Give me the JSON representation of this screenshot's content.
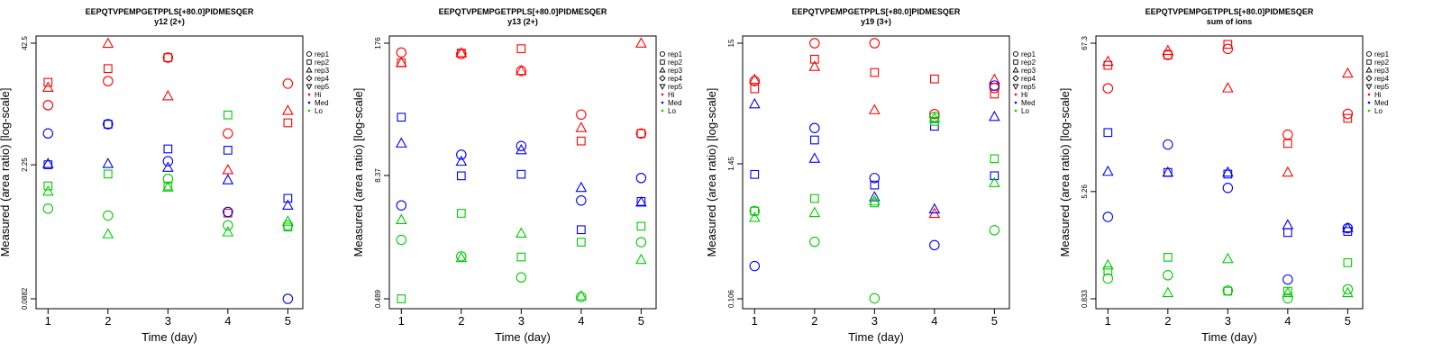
{
  "legend_entries": [
    {
      "label": "rep1",
      "shape": "circle"
    },
    {
      "label": "rep2",
      "shape": "square"
    },
    {
      "label": "rep3",
      "shape": "triangle-up"
    },
    {
      "label": "rep4",
      "shape": "diamond"
    },
    {
      "label": "rep5",
      "shape": "triangle-down"
    },
    {
      "label": "Hi",
      "shape": "dot",
      "color": "#ff0000"
    },
    {
      "label": "Med",
      "shape": "dot",
      "color": "#0000ff"
    },
    {
      "label": "Lo",
      "shape": "dot",
      "color": "#00cc00"
    }
  ],
  "colors": {
    "Hi": "#ff0000",
    "Med": "#0000ff",
    "Lo": "#00cc00"
  },
  "chart_data": [
    {
      "type": "scatter",
      "title": "EEPQTVPEMPGETPPLS[+80.0]PIDMESQER",
      "subtitle": "y12 (2+)",
      "xlabel": "Time (day)",
      "ylabel": "Measured (area ratio) [log-scale]",
      "log_y": true,
      "xlim": [
        0.8,
        5.25
      ],
      "ylim": [
        0.0882,
        42.5
      ],
      "x_ticks": [
        1,
        2,
        3,
        4,
        5
      ],
      "y_ticks": [
        0.0882,
        2.25,
        42.5
      ],
      "y_tick_labels": [
        "0.0882",
        "2.25",
        "42.5"
      ],
      "series": [
        {
          "condition": "Hi",
          "replicate": "rep1",
          "points": [
            [
              1,
              9.5
            ],
            [
              2,
              17
            ],
            [
              3,
              30
            ],
            [
              4,
              4.8
            ],
            [
              5,
              16
            ]
          ]
        },
        {
          "condition": "Hi",
          "replicate": "rep2",
          "points": [
            [
              1,
              16.5
            ],
            [
              2,
              23
            ],
            [
              3,
              30
            ],
            [
              4,
              0.7
            ],
            [
              5,
              6.2
            ]
          ]
        },
        {
          "condition": "Hi",
          "replicate": "rep3",
          "points": [
            [
              1,
              14.5
            ],
            [
              2,
              42
            ],
            [
              3,
              11.8
            ],
            [
              4,
              1.98
            ],
            [
              5,
              8.3
            ]
          ]
        },
        {
          "condition": "Med",
          "replicate": "rep1",
          "points": [
            [
              1,
              4.8
            ],
            [
              2,
              6.0
            ],
            [
              3,
              2.45
            ],
            [
              4,
              0.72
            ],
            [
              5,
              0.0882
            ]
          ]
        },
        {
          "condition": "Med",
          "replicate": "rep2",
          "points": [
            [
              1,
              2.25
            ],
            [
              2,
              6.0
            ],
            [
              3,
              3.3
            ],
            [
              4,
              3.2
            ],
            [
              5,
              1.0
            ]
          ]
        },
        {
          "condition": "Med",
          "replicate": "rep3",
          "points": [
            [
              1,
              2.3
            ],
            [
              2,
              2.3
            ],
            [
              3,
              2.1
            ],
            [
              4,
              1.55
            ],
            [
              5,
              0.84
            ]
          ]
        },
        {
          "condition": "Lo",
          "replicate": "rep1",
          "points": [
            [
              1,
              0.78
            ],
            [
              2,
              0.66
            ],
            [
              3,
              1.6
            ],
            [
              4,
              0.52
            ],
            [
              5,
              0.52
            ]
          ]
        },
        {
          "condition": "Lo",
          "replicate": "rep2",
          "points": [
            [
              1,
              1.35
            ],
            [
              2,
              1.8
            ],
            [
              3,
              1.35
            ],
            [
              4,
              7.5
            ],
            [
              5,
              0.5
            ]
          ]
        },
        {
          "condition": "Lo",
          "replicate": "rep3",
          "points": [
            [
              1,
              1.18
            ],
            [
              2,
              0.42
            ],
            [
              3,
              1.3
            ],
            [
              4,
              0.44
            ],
            [
              5,
              0.57
            ]
          ]
        }
      ]
    },
    {
      "type": "scatter",
      "title": "EEPQTVPEMPGETPPLS[+80.0]PIDMESQER",
      "subtitle": "y13 (2+)",
      "xlabel": "Time (day)",
      "ylabel": "Measured (area ratio) [log-scale]",
      "log_y": true,
      "xlim": [
        0.8,
        5.25
      ],
      "ylim": [
        0.489,
        176
      ],
      "x_ticks": [
        1,
        2,
        3,
        4,
        5
      ],
      "y_ticks": [
        0.489,
        8.37,
        176
      ],
      "y_tick_labels": [
        "0.489",
        "8.37",
        "176"
      ],
      "series": [
        {
          "condition": "Hi",
          "replicate": "rep1",
          "points": [
            [
              1,
              142
            ],
            [
              2,
              137
            ],
            [
              3,
              93
            ],
            [
              4,
              34
            ],
            [
              5,
              22
            ]
          ]
        },
        {
          "condition": "Hi",
          "replicate": "rep2",
          "points": [
            [
              1,
              112
            ],
            [
              2,
              140
            ],
            [
              3,
              155
            ],
            [
              4,
              18.5
            ],
            [
              5,
              22
            ]
          ]
        },
        {
          "condition": "Hi",
          "replicate": "rep3",
          "points": [
            [
              1,
              112
            ],
            [
              2,
              140
            ],
            [
              3,
              93
            ],
            [
              4,
              25
            ],
            [
              5,
              175
            ]
          ]
        },
        {
          "condition": "Med",
          "replicate": "rep1",
          "points": [
            [
              1,
              4.2
            ],
            [
              2,
              13.5
            ],
            [
              3,
              16.5
            ],
            [
              4,
              4.7
            ],
            [
              5,
              7.9
            ]
          ]
        },
        {
          "condition": "Med",
          "replicate": "rep2",
          "points": [
            [
              1,
              32
            ],
            [
              2,
              8.3
            ],
            [
              3,
              8.6
            ],
            [
              4,
              2.4
            ],
            [
              5,
              4.6
            ]
          ]
        },
        {
          "condition": "Med",
          "replicate": "rep3",
          "points": [
            [
              1,
              17.5
            ],
            [
              2,
              11.5
            ],
            [
              3,
              15
            ],
            [
              4,
              6.3
            ],
            [
              5,
              4.5
            ]
          ]
        },
        {
          "condition": "Lo",
          "replicate": "rep1",
          "points": [
            [
              1,
              1.9
            ],
            [
              2,
              1.3
            ],
            [
              3,
              0.8
            ],
            [
              4,
              0.51
            ],
            [
              5,
              1.8
            ]
          ]
        },
        {
          "condition": "Lo",
          "replicate": "rep2",
          "points": [
            [
              1,
              0.489
            ],
            [
              2,
              3.5
            ],
            [
              3,
              1.28
            ],
            [
              4,
              1.8
            ],
            [
              5,
              2.6
            ]
          ]
        },
        {
          "condition": "Lo",
          "replicate": "rep3",
          "points": [
            [
              1,
              3.0
            ],
            [
              2,
              1.25
            ],
            [
              3,
              2.2
            ],
            [
              4,
              0.52
            ],
            [
              5,
              1.2
            ]
          ]
        }
      ]
    },
    {
      "type": "scatter",
      "title": "EEPQTVPEMPGETPPLS[+80.0]PIDMESQER",
      "subtitle": "y19 (3+)",
      "xlabel": "Time (day)",
      "ylabel": "Measured (area ratio) [log-scale]",
      "log_y": true,
      "xlim": [
        0.8,
        5.25
      ],
      "ylim": [
        0.106,
        15
      ],
      "x_ticks": [
        1,
        2,
        3,
        4,
        5
      ],
      "y_ticks": [
        0.106,
        1.45,
        15
      ],
      "y_tick_labels": [
        "0.106",
        "1.45",
        "15"
      ],
      "series": [
        {
          "condition": "Hi",
          "replicate": "rep1",
          "points": [
            [
              1,
              7.2
            ],
            [
              2,
              15
            ],
            [
              3,
              15
            ],
            [
              4,
              3.8
            ],
            [
              5,
              6.3
            ]
          ]
        },
        {
          "condition": "Hi",
          "replicate": "rep2",
          "points": [
            [
              1,
              6.2
            ],
            [
              2,
              11
            ],
            [
              3,
              8.5
            ],
            [
              4,
              7.5
            ],
            [
              5,
              5.6
            ]
          ]
        },
        {
          "condition": "Hi",
          "replicate": "rep3",
          "points": [
            [
              1,
              7.4
            ],
            [
              2,
              9.5
            ],
            [
              3,
              4.1
            ],
            [
              4,
              0.55
            ],
            [
              5,
              7.4
            ]
          ]
        },
        {
          "condition": "Med",
          "replicate": "rep1",
          "points": [
            [
              1,
              0.2
            ],
            [
              2,
              2.9
            ],
            [
              3,
              1.1
            ],
            [
              4,
              0.3
            ],
            [
              5,
              6.6
            ]
          ]
        },
        {
          "condition": "Med",
          "replicate": "rep2",
          "points": [
            [
              1,
              1.18
            ],
            [
              2,
              2.3
            ],
            [
              3,
              0.96
            ],
            [
              4,
              3.0
            ],
            [
              5,
              1.15
            ]
          ]
        },
        {
          "condition": "Med",
          "replicate": "rep3",
          "points": [
            [
              1,
              4.6
            ],
            [
              2,
              1.6
            ],
            [
              3,
              0.76
            ],
            [
              4,
              0.6
            ],
            [
              5,
              3.6
            ]
          ]
        },
        {
          "condition": "Lo",
          "replicate": "rep1",
          "points": [
            [
              1,
              0.58
            ],
            [
              2,
              0.32
            ],
            [
              3,
              0.107
            ],
            [
              4,
              3.6
            ],
            [
              5,
              0.4
            ]
          ]
        },
        {
          "condition": "Lo",
          "replicate": "rep2",
          "points": [
            [
              1,
              0.58
            ],
            [
              2,
              0.74
            ],
            [
              3,
              0.68
            ],
            [
              4,
              3.3
            ],
            [
              5,
              1.6
            ]
          ]
        },
        {
          "condition": "Lo",
          "replicate": "rep3",
          "points": [
            [
              1,
              0.51
            ],
            [
              2,
              0.56
            ],
            [
              3,
              0.7
            ],
            [
              4,
              3.5
            ],
            [
              5,
              1.0
            ]
          ]
        }
      ]
    },
    {
      "type": "scatter",
      "title": "EEPQTVPEMPGETPPLS[+80.0]PIDMESQER",
      "subtitle": "sum of ions",
      "xlabel": "Time (day)",
      "ylabel": "Measured (area ratio) [log-scale]",
      "log_y": true,
      "xlim": [
        0.8,
        5.25
      ],
      "ylim": [
        0.833,
        67.3
      ],
      "x_ticks": [
        1,
        2,
        3,
        4,
        5
      ],
      "y_ticks": [
        0.833,
        5.26,
        67.3
      ],
      "y_tick_labels": [
        "0.833",
        "5.26",
        "67.3"
      ],
      "series": [
        {
          "condition": "Hi",
          "replicate": "rep1",
          "points": [
            [
              1,
              31
            ],
            [
              2,
              55
            ],
            [
              3,
              61
            ],
            [
              4,
              14
            ],
            [
              5,
              20
            ]
          ]
        },
        {
          "condition": "Hi",
          "replicate": "rep2",
          "points": [
            [
              1,
              46
            ],
            [
              2,
              55
            ],
            [
              3,
              66
            ],
            [
              4,
              12
            ],
            [
              5,
              18.5
            ]
          ]
        },
        {
          "condition": "Hi",
          "replicate": "rep3",
          "points": [
            [
              1,
              49
            ],
            [
              2,
              59
            ],
            [
              3,
              31
            ],
            [
              4,
              7.3
            ],
            [
              5,
              40
            ]
          ]
        },
        {
          "condition": "Med",
          "replicate": "rep1",
          "points": [
            [
              1,
              3.4
            ],
            [
              2,
              11.8
            ],
            [
              3,
              5.6
            ],
            [
              4,
              1.16
            ],
            [
              5,
              2.8
            ]
          ]
        },
        {
          "condition": "Med",
          "replicate": "rep2",
          "points": [
            [
              1,
              14.5
            ],
            [
              2,
              7.3
            ],
            [
              3,
              7.1
            ],
            [
              4,
              2.6
            ],
            [
              5,
              2.65
            ]
          ]
        },
        {
          "condition": "Med",
          "replicate": "rep3",
          "points": [
            [
              1,
              7.4
            ],
            [
              2,
              7.3
            ],
            [
              3,
              7.3
            ],
            [
              4,
              2.95
            ],
            [
              5,
              2.8
            ]
          ]
        },
        {
          "condition": "Lo",
          "replicate": "rep1",
          "points": [
            [
              1,
              1.18
            ],
            [
              2,
              1.25
            ],
            [
              3,
              0.96
            ],
            [
              4,
              0.84
            ],
            [
              5,
              0.98
            ]
          ]
        },
        {
          "condition": "Lo",
          "replicate": "rep2",
          "points": [
            [
              1,
              1.35
            ],
            [
              2,
              1.7
            ],
            [
              3,
              0.95
            ],
            [
              4,
              0.95
            ],
            [
              5,
              1.55
            ]
          ]
        },
        {
          "condition": "Lo",
          "replicate": "rep3",
          "points": [
            [
              1,
              1.48
            ],
            [
              2,
              0.92
            ],
            [
              3,
              1.65
            ],
            [
              4,
              0.92
            ],
            [
              5,
              0.92
            ]
          ]
        }
      ]
    }
  ]
}
